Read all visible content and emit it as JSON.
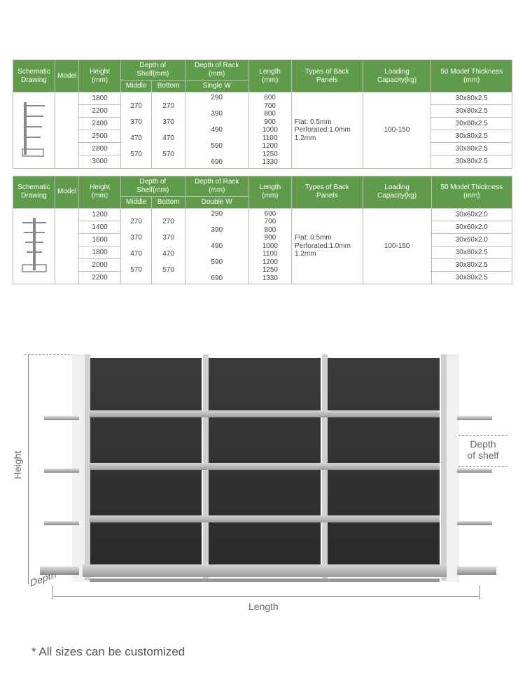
{
  "headers": {
    "schematic": "Schematic Drawing",
    "model": "Model",
    "height": "Height (mm)",
    "depthShelf": "Depth of Shelf(mm)",
    "middle": "Middle",
    "bottom": "Bottom",
    "depthRack": "Depth of Rack (mm)",
    "singleW": "Single W",
    "doubleW": "Double W",
    "length": "Length (mm)",
    "backPanels": "Types of Back Panels",
    "loading": "Loading Capacity(kg)",
    "thickness": "50 Model Thickness (mm)"
  },
  "table1": {
    "heights": [
      "1800",
      "2200",
      "2400",
      "2500",
      "2800",
      "3000"
    ],
    "middle": [
      "270",
      "370",
      "470",
      "570"
    ],
    "bottom": [
      "270",
      "370",
      "470",
      "570"
    ],
    "rack": [
      "290",
      "390",
      "490",
      "590",
      "690"
    ],
    "lengths": [
      "600",
      "700",
      "800",
      "900",
      "1000",
      "1100",
      "1200",
      "1250",
      "1330"
    ],
    "backPanels": "Flat: 0.5mm\nPerforated:1.0mm\n1.2mm",
    "loading": "100-150",
    "thickness": [
      "30x80x2.5",
      "30x80x2.5",
      "30x80x2.5",
      "30x80x2.5",
      "30x80x2.5",
      "30x80x2.5"
    ]
  },
  "table2": {
    "heights": [
      "1200",
      "1400",
      "1600",
      "1800",
      "2000",
      "2200"
    ],
    "middle": [
      "270",
      "370",
      "470",
      "570"
    ],
    "bottom": [
      "270",
      "370",
      "470",
      "570"
    ],
    "rack": [
      "290",
      "390",
      "490",
      "590",
      "690"
    ],
    "lengths": [
      "600",
      "700",
      "800",
      "900",
      "1000",
      "1100",
      "1200",
      "1250",
      "1330"
    ],
    "backPanels": "Flat: 0.5mm\nPerforated:1.0mm\n1.2mm",
    "loading": "100-150",
    "thickness": [
      "30x60x2.0",
      "30x60x2.0",
      "30x60x2.0",
      "30x80x2.5",
      "30x80x2.5",
      "30x80x2.5"
    ]
  },
  "diagram": {
    "heightLabel": "Height",
    "depthLabel": "Depth",
    "lengthLabel": "Length",
    "depthShelfLabel": "Depth of shelf",
    "colors": {
      "panel": "#2f2f2f",
      "post": "#d0d0d0",
      "board": "#bcbcbc"
    }
  },
  "footnote": "* All sizes can be customized"
}
